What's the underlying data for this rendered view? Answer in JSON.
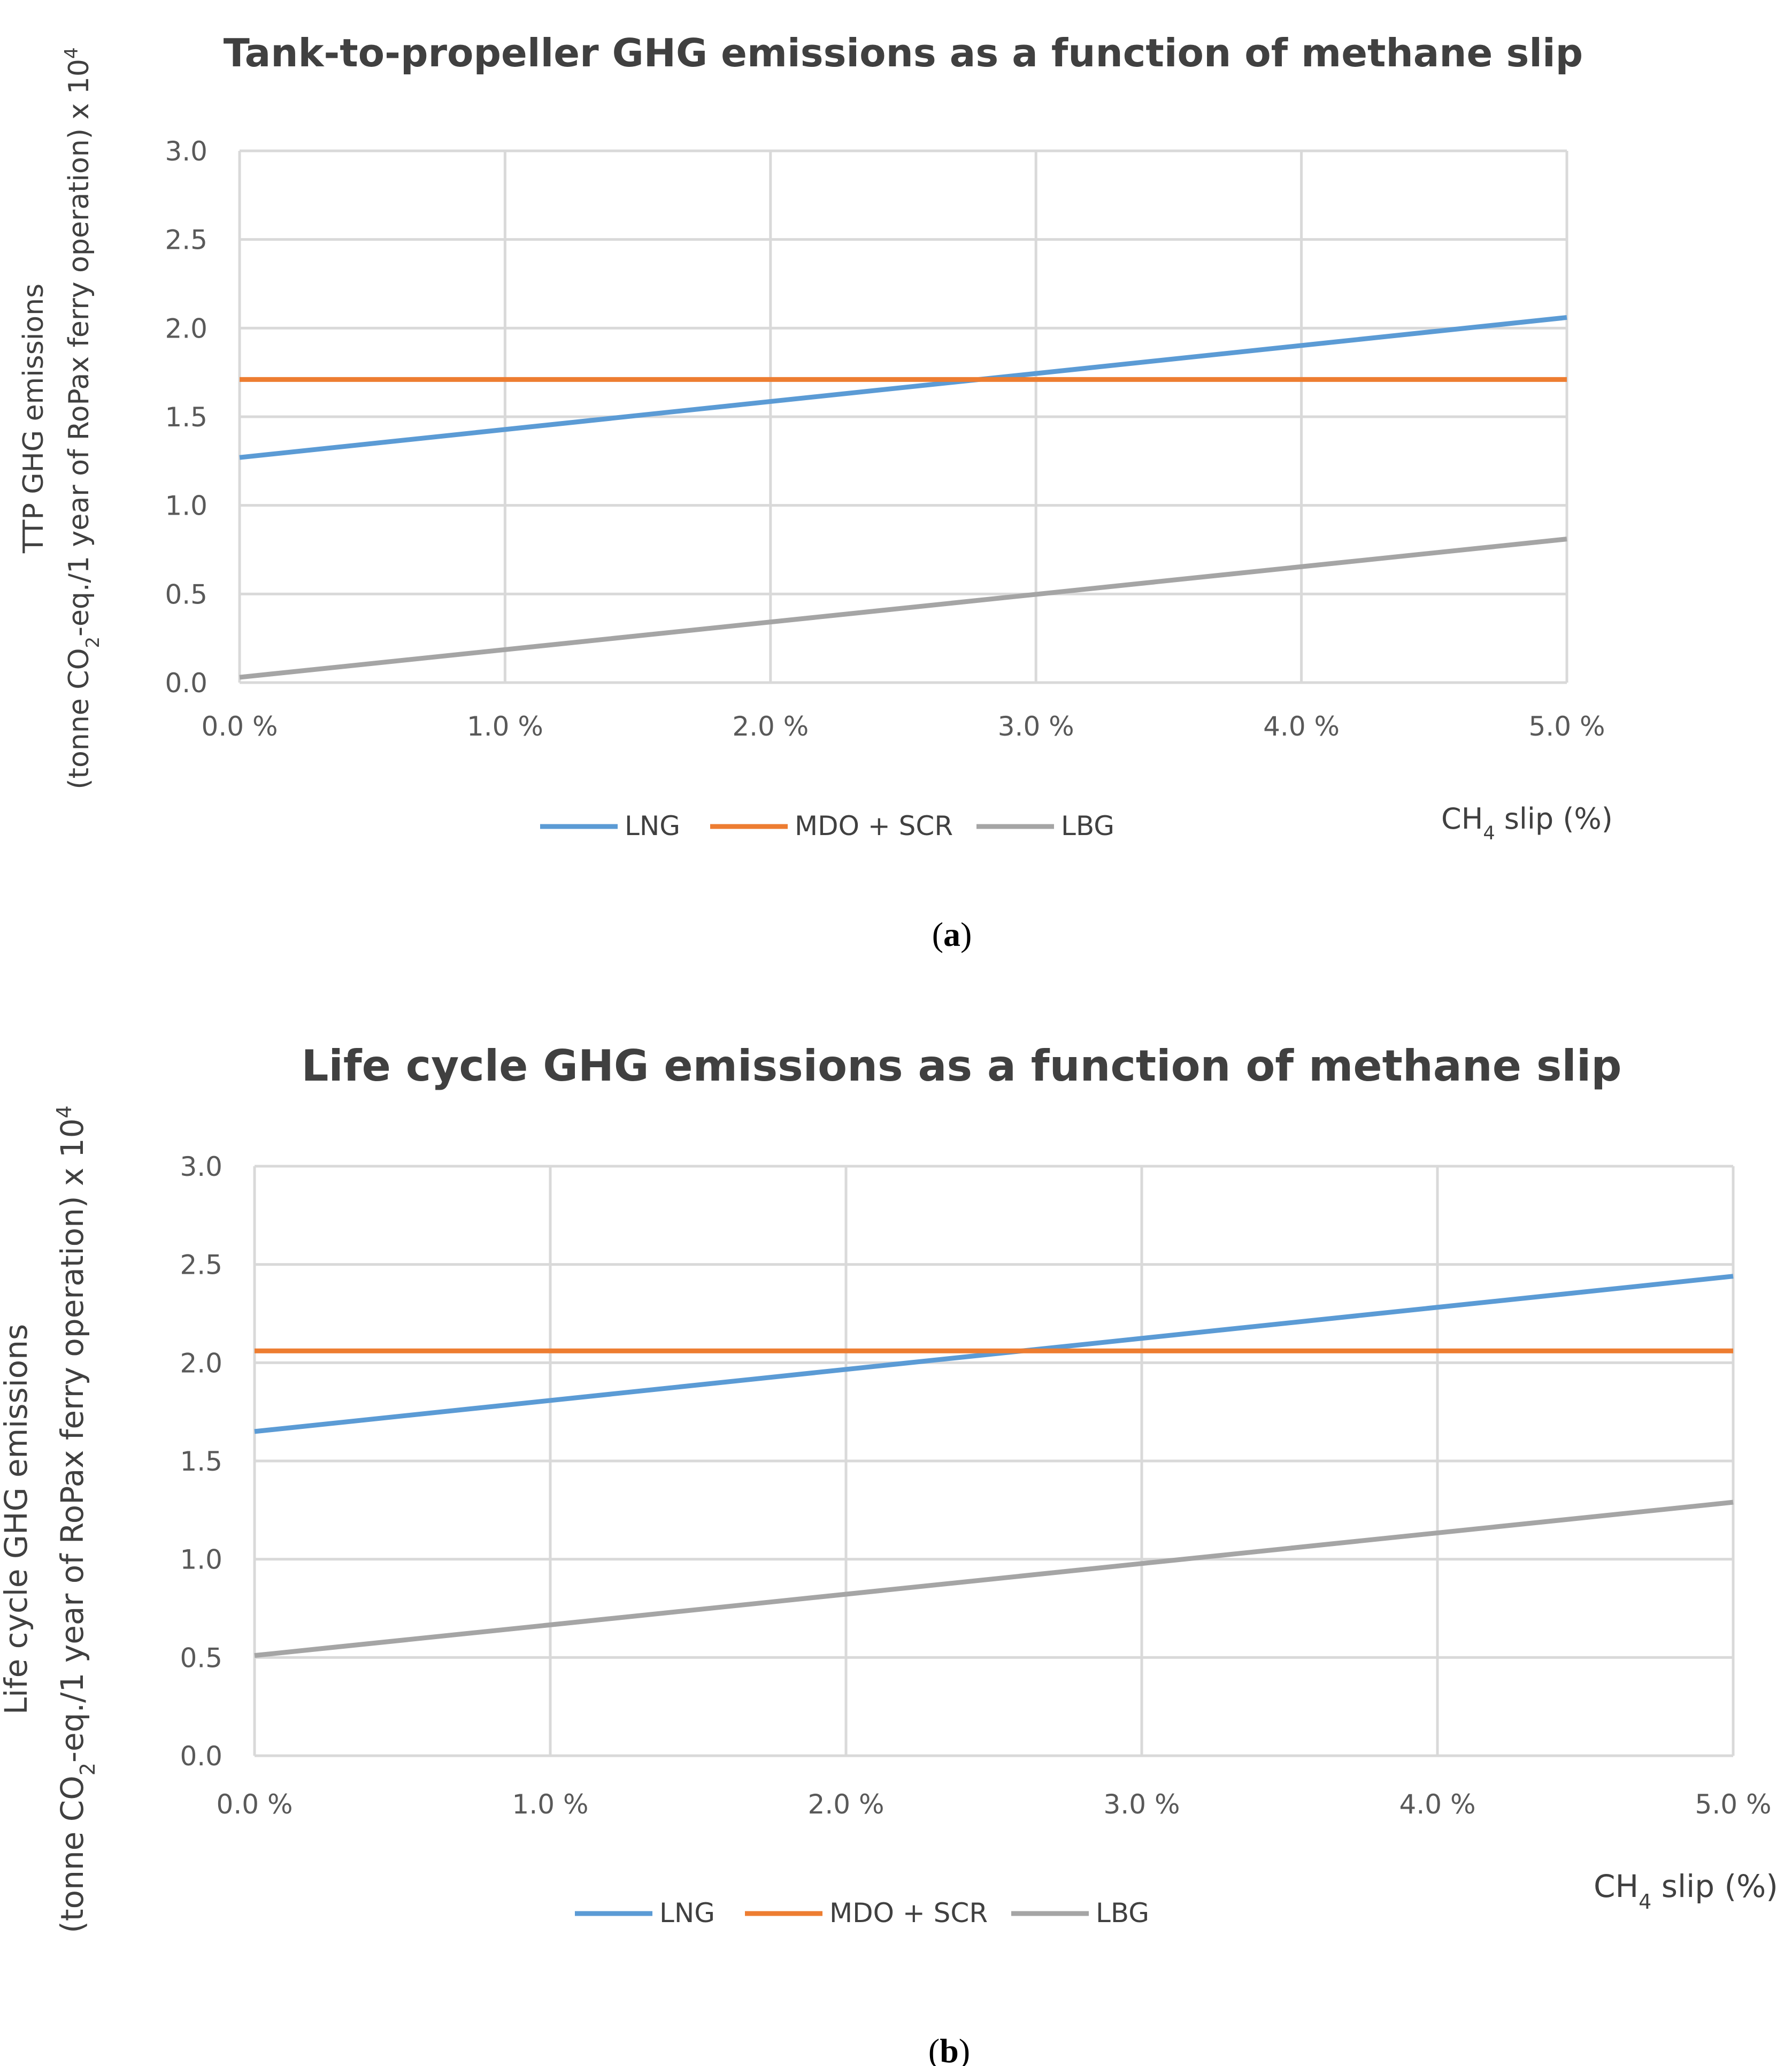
{
  "colors": {
    "LNG": "#5b9bd5",
    "MDO + SCR": "#ed7d31",
    "LBG": "#a5a5a5"
  },
  "chart_data": [
    {
      "type": "line",
      "caption_label": "a",
      "title": "Tank-to-propeller GHG emissions as a function of methane slip",
      "ylabel_line1": "TTP GHG emissions",
      "ylabel_line2_pre": "(tonne CO",
      "ylabel_line2_sub": "2",
      "ylabel_line2_post": "-eq./1 year of RoPax ferry operation) x 10",
      "ylabel_line2_sup": "4",
      "xlabel_pre": "CH",
      "xlabel_sub": "4",
      "xlabel_post": " slip (%)",
      "x": [
        0,
        5
      ],
      "x_ticks": [
        0,
        1,
        2,
        3,
        4,
        5
      ],
      "x_tick_labels": [
        "0.0 %",
        "1.0 %",
        "2.0 %",
        "3.0 %",
        "4.0 %",
        "5.0 %"
      ],
      "y_ticks": [
        0,
        0.5,
        1.0,
        1.5,
        2.0,
        2.5,
        3.0
      ],
      "y_tick_labels": [
        "0.0",
        "0.5",
        "1.0",
        "1.5",
        "2.0",
        "2.5",
        "3.0"
      ],
      "xlim": [
        0,
        5
      ],
      "ylim": [
        0,
        3.0
      ],
      "grid": true,
      "legend_position": "bottom-center",
      "series": [
        {
          "name": "LNG",
          "values": [
            1.27,
            2.06
          ]
        },
        {
          "name": "MDO + SCR",
          "values": [
            1.71,
            1.71
          ]
        },
        {
          "name": "LBG",
          "values": [
            0.03,
            0.81
          ]
        }
      ]
    },
    {
      "type": "line",
      "caption_label": "b",
      "title": "Life cycle GHG emissions as a function of methane slip",
      "ylabel_line1": "Life cycle GHG emissions",
      "ylabel_line2_pre": "(tonne CO",
      "ylabel_line2_sub": "2",
      "ylabel_line2_post": "-eq./1 year of RoPax ferry operation) x 10",
      "ylabel_line2_sup": "4",
      "xlabel_pre": "CH",
      "xlabel_sub": "4",
      "xlabel_post": " slip (%)",
      "x": [
        0,
        5
      ],
      "x_ticks": [
        0,
        1,
        2,
        3,
        4,
        5
      ],
      "x_tick_labels": [
        "0.0 %",
        "1.0 %",
        "2.0 %",
        "3.0 %",
        "4.0 %",
        "5.0 %"
      ],
      "y_ticks": [
        0,
        0.5,
        1.0,
        1.5,
        2.0,
        2.5,
        3.0
      ],
      "y_tick_labels": [
        "0.0",
        "0.5",
        "1.0",
        "1.5",
        "2.0",
        "2.5",
        "3.0"
      ],
      "xlim": [
        0,
        5
      ],
      "ylim": [
        0,
        3.0
      ],
      "grid": true,
      "legend_position": "bottom-center",
      "series": [
        {
          "name": "LNG",
          "values": [
            1.65,
            2.44
          ]
        },
        {
          "name": "MDO + SCR",
          "values": [
            2.06,
            2.06
          ]
        },
        {
          "name": "LBG",
          "values": [
            0.51,
            1.29
          ]
        }
      ]
    }
  ]
}
